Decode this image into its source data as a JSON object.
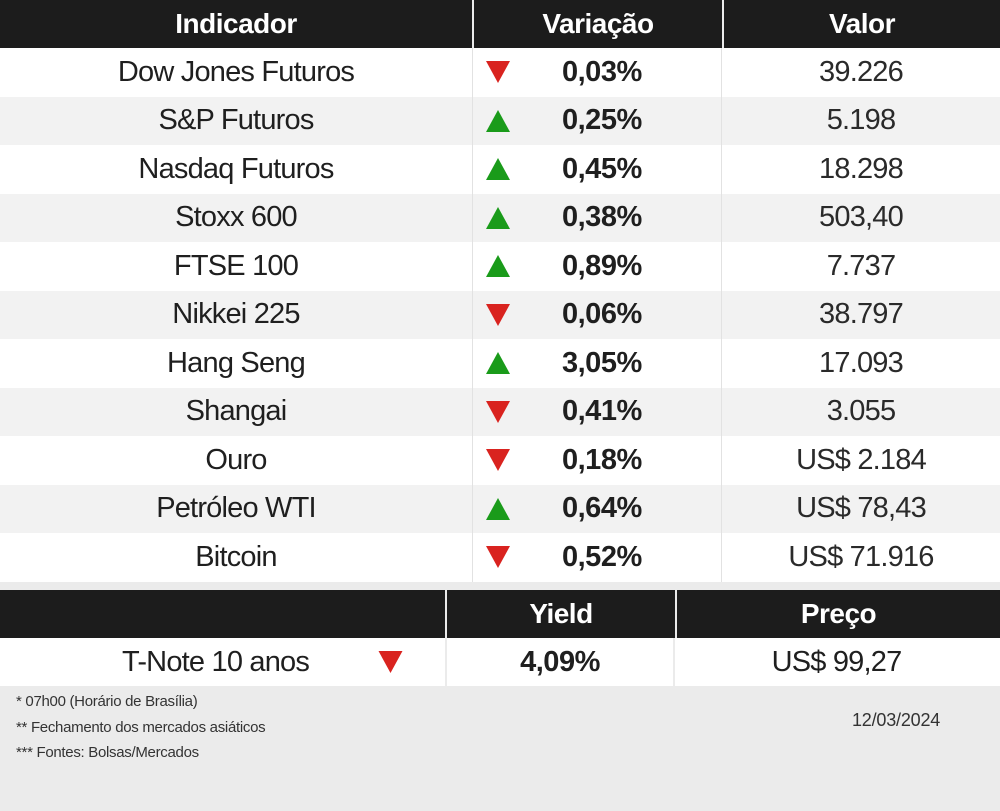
{
  "table": {
    "headers": {
      "indicator": "Indicador",
      "variation": "Variação",
      "value": "Valor"
    },
    "rows": [
      {
        "name": "Dow Jones Futuros",
        "direction": "down",
        "change": "0,03%",
        "value": "39.226"
      },
      {
        "name": "S&P Futuros",
        "direction": "up",
        "change": "0,25%",
        "value": "5.198"
      },
      {
        "name": "Nasdaq Futuros",
        "direction": "up",
        "change": "0,45%",
        "value": "18.298"
      },
      {
        "name": "Stoxx 600",
        "direction": "up",
        "change": "0,38%",
        "value": "503,40"
      },
      {
        "name": "FTSE 100",
        "direction": "up",
        "change": "0,89%",
        "value": "7.737"
      },
      {
        "name": "Nikkei 225",
        "direction": "down",
        "change": "0,06%",
        "value": "38.797"
      },
      {
        "name": "Hang Seng",
        "direction": "up",
        "change": "3,05%",
        "value": "17.093"
      },
      {
        "name": "Shangai",
        "direction": "down",
        "change": "0,41%",
        "value": "3.055"
      },
      {
        "name": "Ouro",
        "direction": "down",
        "change": "0,18%",
        "value": "US$ 2.184"
      },
      {
        "name": "Petróleo WTI",
        "direction": "up",
        "change": "0,64%",
        "value": "US$ 78,43"
      },
      {
        "name": "Bitcoin",
        "direction": "down",
        "change": "0,52%",
        "value": "US$ 71.916"
      }
    ]
  },
  "bond": {
    "headers": {
      "yield": "Yield",
      "price": "Preço"
    },
    "name": "T-Note 10 anos",
    "direction": "down",
    "yield": "4,09%",
    "price": "US$ 99,27"
  },
  "footnotes": [
    "* 07h00 (Horário de Brasília)",
    "** Fechamento dos mercados asiáticos",
    "*** Fontes: Bolsas/Mercados"
  ],
  "date": "12/03/2024",
  "colors": {
    "up": "#1a9b1a",
    "down": "#d9231f",
    "header_bg": "#1c1c1c"
  },
  "icons": {
    "up": "triangle-up-icon",
    "down": "triangle-down-icon"
  }
}
